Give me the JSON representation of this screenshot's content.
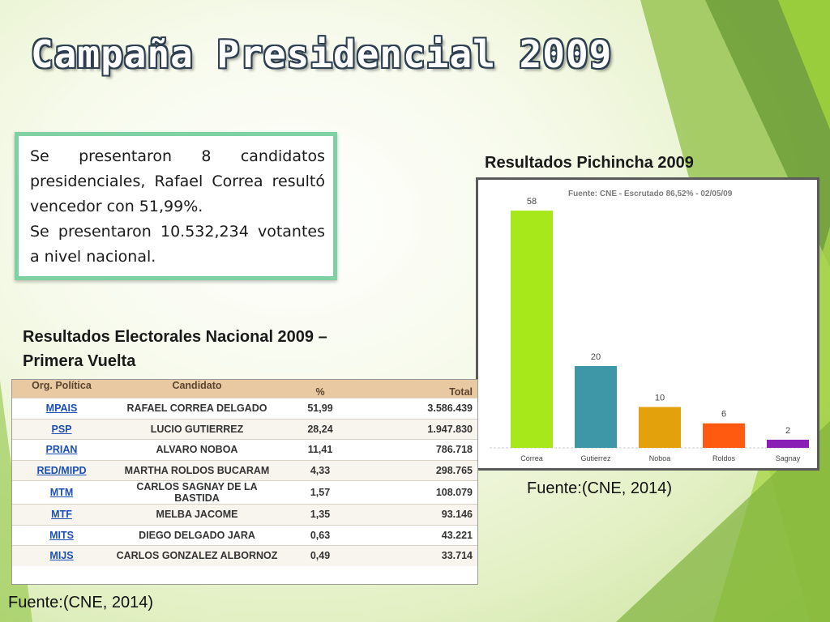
{
  "title": "Campaña Presidencial 2009",
  "info_lines": [
    "Se presentaron 8 candidatos presidenciales, Rafael Correa resultó vencedor con 51,99%.",
    "Se presentaron 10.532,234 votantes a nivel nacional."
  ],
  "pichincha_heading": "Resultados Pichincha 2009",
  "national_heading_line1": "Resultados Electorales Nacional 2009 –",
  "national_heading_line2": "Primera Vuelta",
  "source_chart": "Fuente:(CNE, 2014)",
  "source_table": "Fuente:(CNE, 2014)",
  "table": {
    "headers": [
      "Org. Política",
      "Candidato",
      "%",
      "Total"
    ],
    "rows": [
      {
        "org": "MPAIS",
        "candidate": "RAFAEL CORREA DELGADO",
        "pct": "51,99",
        "total": "3.586.439"
      },
      {
        "org": "PSP",
        "candidate": "LUCIO GUTIERREZ",
        "pct": "28,24",
        "total": "1.947.830"
      },
      {
        "org": "PRIAN",
        "candidate": "ALVARO NOBOA",
        "pct": "11,41",
        "total": "786.718"
      },
      {
        "org": "RED/MIPD",
        "candidate": "MARTHA ROLDOS BUCARAM",
        "pct": "4,33",
        "total": "298.765"
      },
      {
        "org": "MTM",
        "candidate": "CARLOS SAGNAY DE LA BASTIDA",
        "pct": "1,57",
        "total": "108.079"
      },
      {
        "org": "MTF",
        "candidate": "MELBA JACOME",
        "pct": "1,35",
        "total": "93.146"
      },
      {
        "org": "MITS",
        "candidate": "DIEGO DELGADO JARA",
        "pct": "0,63",
        "total": "43.221"
      },
      {
        "org": "MIJS",
        "candidate": "CARLOS GONZALEZ ALBORNOZ",
        "pct": "0,49",
        "total": "33.714"
      }
    ]
  },
  "chart_data": {
    "type": "bar",
    "title": "Fuente: CNE - Escrutado 86,52% - 02/05/09",
    "categories": [
      "Correa",
      "Gutierrez",
      "Noboa",
      "Roldos",
      "Sagnay"
    ],
    "values": [
      58,
      20,
      10,
      6,
      2
    ],
    "colors": [
      "#a6e81a",
      "#3d97a6",
      "#e3a20c",
      "#ff5a0f",
      "#8a1fb5"
    ],
    "ylim": [
      0,
      60
    ],
    "grid": false,
    "legend": "none"
  }
}
